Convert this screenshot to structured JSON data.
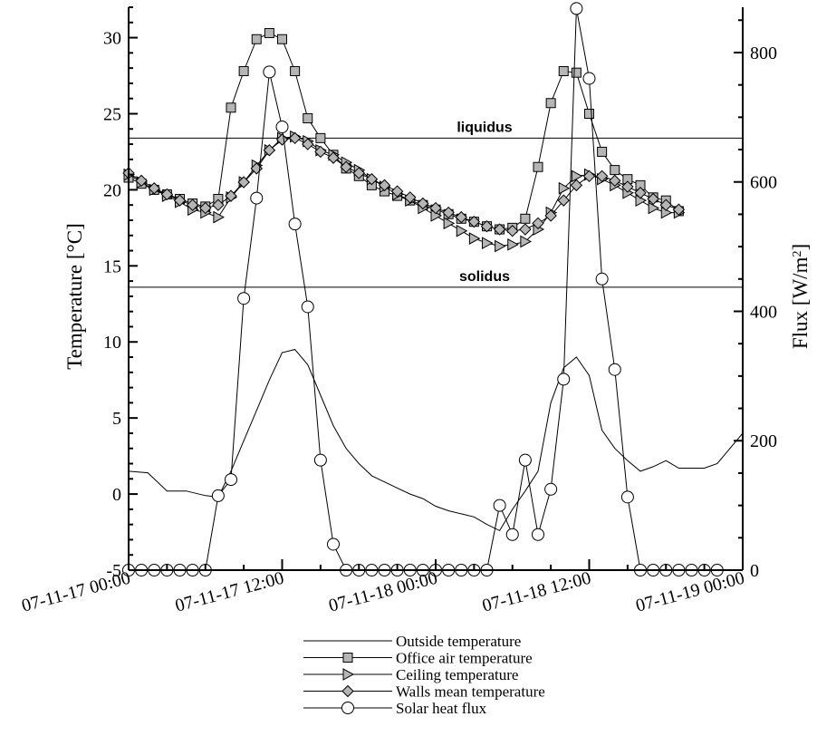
{
  "chart_data": {
    "type": "line",
    "x_label": "",
    "y_left_label": "Temperature [°C]",
    "y_right_label_main": "Flux [W/m",
    "y_right_label_sup": "2",
    "y_right_label_end": "]",
    "y_left_range": [
      -5,
      32
    ],
    "y_right_range": [
      0,
      870
    ],
    "x_range_hours": [
      0,
      48
    ],
    "y_left_ticks": [
      "-5",
      "0",
      "5",
      "10",
      "15",
      "20",
      "25",
      "30"
    ],
    "y_right_ticks": [
      "0",
      "200",
      "400",
      "600",
      "800"
    ],
    "x_tick_labels": [
      "07-11-17 00:00",
      "07-11-17 12:00",
      "07-11-18 00:00",
      "07-11-18 12:00",
      "07-11-19 00:00"
    ],
    "reference_lines": [
      {
        "label": "liquidus",
        "value": 23.4
      },
      {
        "label": "solidus",
        "value": 13.6
      }
    ],
    "series": [
      {
        "name": "Outside temperature",
        "axis": "left",
        "marker": "none",
        "points": [
          [
            0,
            1.5
          ],
          [
            1.5,
            1.4
          ],
          [
            3,
            0.2
          ],
          [
            4.5,
            0.2
          ],
          [
            6,
            -0.1
          ],
          [
            7,
            -0.2
          ],
          [
            8,
            1.5
          ],
          [
            9,
            3.5
          ],
          [
            10,
            5.5
          ],
          [
            11,
            7.5
          ],
          [
            12,
            9.3
          ],
          [
            13,
            9.5
          ],
          [
            14,
            8.5
          ],
          [
            15,
            6.5
          ],
          [
            16,
            4.5
          ],
          [
            17,
            3.0
          ],
          [
            18,
            2.0
          ],
          [
            19,
            1.2
          ],
          [
            20,
            0.8
          ],
          [
            21,
            0.4
          ],
          [
            22,
            0.0
          ],
          [
            23,
            -0.3
          ],
          [
            24,
            -0.8
          ],
          [
            25,
            -1.1
          ],
          [
            26,
            -1.3
          ],
          [
            27,
            -1.5
          ],
          [
            28,
            -2.0
          ],
          [
            29,
            -2.4
          ],
          [
            30,
            -1.0
          ],
          [
            31,
            0.2
          ],
          [
            32,
            1.5
          ],
          [
            33,
            6.0
          ],
          [
            34,
            8.3
          ],
          [
            35,
            9.0
          ],
          [
            36,
            7.8
          ],
          [
            37,
            4.2
          ],
          [
            38,
            3.0
          ],
          [
            39,
            2.2
          ],
          [
            40,
            1.5
          ],
          [
            41,
            1.8
          ],
          [
            42,
            2.2
          ],
          [
            43,
            1.7
          ],
          [
            44,
            1.7
          ],
          [
            45,
            1.7
          ],
          [
            46,
            2.0
          ],
          [
            48,
            4.0
          ]
        ]
      },
      {
        "name": "Office air temperature",
        "axis": "left",
        "marker": "square",
        "points": [
          [
            0,
            20.8
          ],
          [
            1,
            20.4
          ],
          [
            2,
            20.0
          ],
          [
            3,
            19.7
          ],
          [
            4,
            19.4
          ],
          [
            5,
            19.1
          ],
          [
            6,
            18.9
          ],
          [
            7,
            19.4
          ],
          [
            8,
            25.4
          ],
          [
            9,
            27.8
          ],
          [
            10,
            29.9
          ],
          [
            11,
            30.3
          ],
          [
            12,
            29.9
          ],
          [
            13,
            27.8
          ],
          [
            14,
            24.7
          ],
          [
            15,
            23.4
          ],
          [
            16,
            22.3
          ],
          [
            17,
            21.4
          ],
          [
            18,
            20.9
          ],
          [
            19,
            20.3
          ],
          [
            20,
            19.9
          ],
          [
            21,
            19.6
          ],
          [
            22,
            19.3
          ],
          [
            23,
            19.0
          ],
          [
            24,
            18.7
          ],
          [
            25,
            18.4
          ],
          [
            26,
            18.1
          ],
          [
            27,
            17.9
          ],
          [
            28,
            17.6
          ],
          [
            29,
            17.4
          ],
          [
            30,
            17.5
          ],
          [
            31,
            18.1
          ],
          [
            32,
            21.5
          ],
          [
            33,
            25.7
          ],
          [
            34,
            27.8
          ],
          [
            35,
            27.7
          ],
          [
            36,
            25.0
          ],
          [
            37,
            22.5
          ],
          [
            38,
            21.3
          ],
          [
            39,
            20.7
          ],
          [
            40,
            20.3
          ],
          [
            41,
            19.5
          ],
          [
            42,
            19.3
          ],
          [
            43,
            18.6
          ]
        ]
      },
      {
        "name": "Ceiling temperature",
        "axis": "left",
        "marker": "triangle-right",
        "points": [
          [
            0,
            21.0
          ],
          [
            1,
            20.5
          ],
          [
            2,
            20.0
          ],
          [
            3,
            19.6
          ],
          [
            4,
            19.2
          ],
          [
            5,
            18.7
          ],
          [
            6,
            18.5
          ],
          [
            7,
            18.2
          ],
          [
            8,
            19.5
          ],
          [
            9,
            20.5
          ],
          [
            10,
            21.6
          ],
          [
            11,
            22.6
          ],
          [
            12,
            23.4
          ],
          [
            13,
            23.5
          ],
          [
            14,
            23.2
          ],
          [
            15,
            22.6
          ],
          [
            16,
            22.3
          ],
          [
            17,
            21.8
          ],
          [
            18,
            21.3
          ],
          [
            19,
            20.7
          ],
          [
            20,
            20.2
          ],
          [
            21,
            19.7
          ],
          [
            22,
            19.3
          ],
          [
            23,
            18.8
          ],
          [
            24,
            18.3
          ],
          [
            25,
            17.8
          ],
          [
            26,
            17.3
          ],
          [
            27,
            16.8
          ],
          [
            28,
            16.5
          ],
          [
            29,
            16.3
          ],
          [
            30,
            16.4
          ],
          [
            31,
            16.6
          ],
          [
            32,
            17.4
          ],
          [
            33,
            18.5
          ],
          [
            34,
            20.1
          ],
          [
            35,
            20.9
          ],
          [
            36,
            21.0
          ],
          [
            37,
            20.7
          ],
          [
            38,
            20.3
          ],
          [
            39,
            19.8
          ],
          [
            40,
            19.3
          ],
          [
            41,
            18.8
          ],
          [
            42,
            18.5
          ],
          [
            43,
            18.5
          ]
        ]
      },
      {
        "name": "Walls mean temperature",
        "axis": "left",
        "marker": "diamond",
        "points": [
          [
            0,
            21.1
          ],
          [
            1,
            20.6
          ],
          [
            2,
            20.1
          ],
          [
            3,
            19.7
          ],
          [
            4,
            19.3
          ],
          [
            5,
            19.0
          ],
          [
            6,
            18.8
          ],
          [
            7,
            19.0
          ],
          [
            8,
            19.6
          ],
          [
            9,
            20.5
          ],
          [
            10,
            21.4
          ],
          [
            11,
            22.6
          ],
          [
            12,
            23.3
          ],
          [
            13,
            23.4
          ],
          [
            14,
            23.0
          ],
          [
            15,
            22.5
          ],
          [
            16,
            22.1
          ],
          [
            17,
            21.5
          ],
          [
            18,
            21.1
          ],
          [
            19,
            20.7
          ],
          [
            20,
            20.3
          ],
          [
            21,
            19.9
          ],
          [
            22,
            19.5
          ],
          [
            23,
            19.1
          ],
          [
            24,
            18.8
          ],
          [
            25,
            18.5
          ],
          [
            26,
            18.2
          ],
          [
            27,
            17.9
          ],
          [
            28,
            17.6
          ],
          [
            29,
            17.4
          ],
          [
            30,
            17.3
          ],
          [
            31,
            17.4
          ],
          [
            32,
            17.8
          ],
          [
            33,
            18.3
          ],
          [
            34,
            19.3
          ],
          [
            35,
            20.3
          ],
          [
            36,
            20.9
          ],
          [
            37,
            20.9
          ],
          [
            38,
            20.6
          ],
          [
            39,
            20.2
          ],
          [
            40,
            19.8
          ],
          [
            41,
            19.4
          ],
          [
            42,
            19.0
          ],
          [
            43,
            18.7
          ]
        ]
      },
      {
        "name": "Solar heat flux",
        "axis": "right",
        "marker": "circle",
        "points": [
          [
            0,
            0
          ],
          [
            1,
            0
          ],
          [
            2,
            0
          ],
          [
            3,
            0
          ],
          [
            4,
            0
          ],
          [
            5,
            0
          ],
          [
            6,
            0
          ],
          [
            7,
            115
          ],
          [
            8,
            140
          ],
          [
            9,
            420
          ],
          [
            10,
            575
          ],
          [
            11,
            770
          ],
          [
            12,
            685
          ],
          [
            13,
            535
          ],
          [
            14,
            407
          ],
          [
            15,
            170
          ],
          [
            16,
            40
          ],
          [
            17,
            0
          ],
          [
            18,
            0
          ],
          [
            19,
            0
          ],
          [
            20,
            0
          ],
          [
            21,
            0
          ],
          [
            22,
            0
          ],
          [
            23,
            0
          ],
          [
            24,
            0
          ],
          [
            25,
            0
          ],
          [
            26,
            0
          ],
          [
            27,
            0
          ],
          [
            28,
            0
          ],
          [
            29,
            100
          ],
          [
            30,
            55
          ],
          [
            31,
            170
          ],
          [
            32,
            55
          ],
          [
            33,
            125
          ],
          [
            34,
            295
          ],
          [
            35,
            868
          ],
          [
            36,
            760
          ],
          [
            37,
            450
          ],
          [
            38,
            310
          ],
          [
            39,
            113
          ],
          [
            40,
            0
          ],
          [
            41,
            0
          ],
          [
            42,
            0
          ],
          [
            43,
            0
          ],
          [
            44,
            0
          ],
          [
            45,
            0
          ],
          [
            46,
            0
          ]
        ]
      }
    ]
  }
}
